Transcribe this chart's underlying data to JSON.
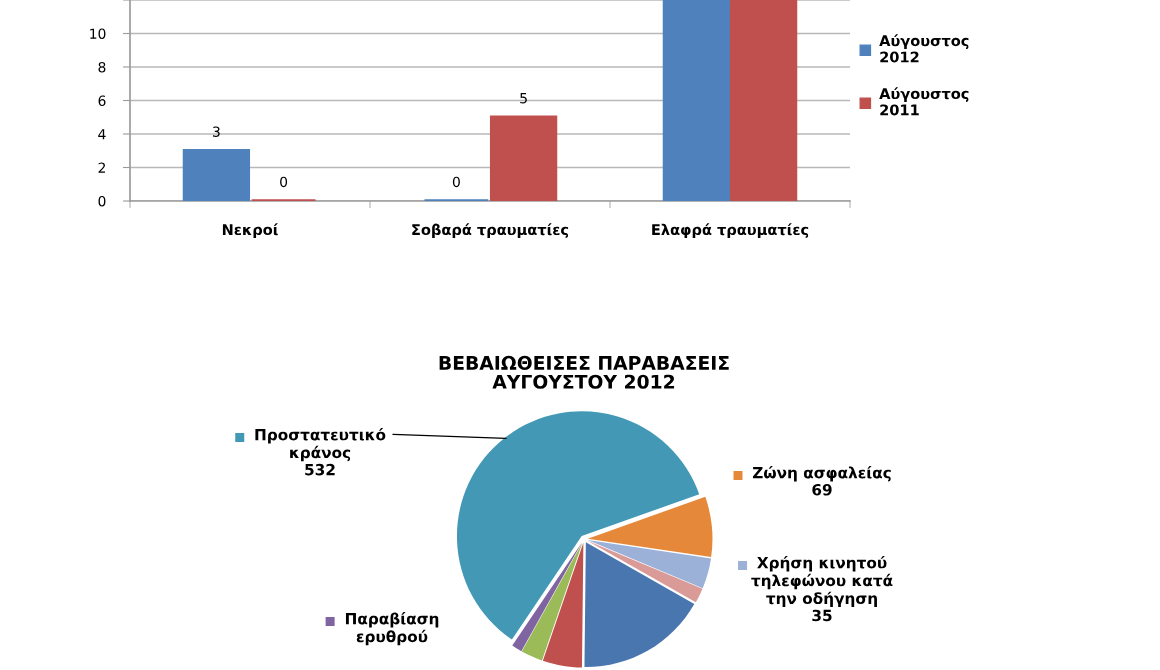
{
  "chart_data": [
    {
      "type": "bar",
      "categories": [
        "Νεκροί",
        "Σοβαρά τραυματίες",
        "Ελαφρά τραυματίες"
      ],
      "series": [
        {
          "name": "Αύγουστος 2012",
          "color": "#4f81bd",
          "values": [
            3,
            0,
            12
          ],
          "value_labels": [
            "3",
            "0",
            null
          ]
        },
        {
          "name": "Αύγουστος 2011",
          "color": "#c0504d",
          "values": [
            0,
            5,
            12
          ],
          "value_labels": [
            "0",
            "5",
            null
          ]
        }
      ],
      "ylim": [
        0,
        12
      ],
      "yticks": [
        0,
        2,
        4,
        6,
        8,
        10,
        {
          "value": 12,
          "label": null
        }
      ],
      "grid": "y",
      "legend": "right"
    },
    {
      "type": "pie",
      "title": "ΒΕΒΑΙΩΘΕΙΣΕΣ ΠΑΡΑΒΑΣΕΙΣ ΑΥΓΟΥΣΤΟΥ 2012",
      "categories": [
        "Προστατευτικό κράνος",
        "Ζώνη ασφαλείας",
        "Χρήση κινητού τηλεφώνου κατά την οδήγηση",
        null,
        null,
        null,
        null,
        "Παραβίαση ερυθρού"
      ],
      "values": [
        532,
        69,
        35,
        17,
        150,
        45,
        25,
        12
      ],
      "colors": [
        "#4298b5",
        "#e6883a",
        "#9bb1d8",
        "#da9a98",
        "#4a76b0",
        "#c0504d",
        "#9bbb59",
        "#8064a2"
      ],
      "value_labels": [
        "532",
        "69",
        "35",
        null,
        null,
        null,
        null,
        null
      ],
      "legend": true
    }
  ]
}
